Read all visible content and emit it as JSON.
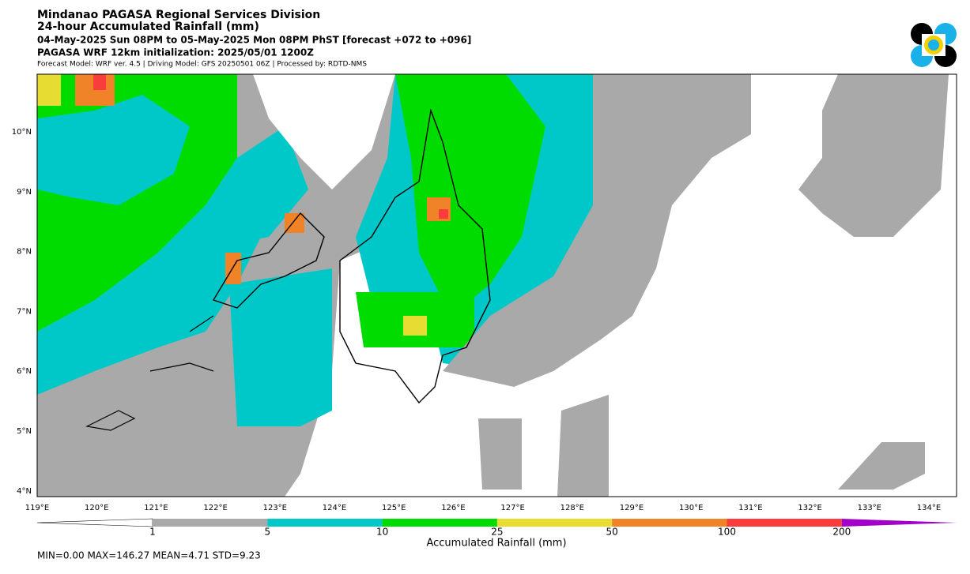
{
  "header": {
    "title": "Mindanao PAGASA Regional Services Division",
    "subtitle": "24-hour Accumulated Rainfall (mm)",
    "period": "04-May-2025 Sun 08PM to 05-May-2025 Mon 08PM PhST [forecast +072 to +096]",
    "model": "PAGASA WRF 12km initialization: 2025/05/01 1200Z",
    "note": "Forecast Model: WRF ver. 4.5 | Driving Model: GFS 20250501 06Z | Processed by: RDTD-NMS"
  },
  "map": {
    "lat_labels": [
      "10°N",
      "9°N",
      "8°N",
      "7°N",
      "6°N",
      "5°N",
      "4°N"
    ],
    "lon_labels": [
      "119°E",
      "120°E",
      "121°E",
      "122°E",
      "123°E",
      "124°E",
      "125°E",
      "126°E",
      "127°E",
      "128°E",
      "129°E",
      "130°E",
      "131°E",
      "132°E",
      "133°E",
      "134°E"
    ]
  },
  "colorbar": {
    "ticks": [
      "1",
      "5",
      "10",
      "25",
      "50",
      "100",
      "200"
    ],
    "colors": [
      "#a9a9a9",
      "#00c8c8",
      "#00dc00",
      "#e6dc32",
      "#f08228",
      "#fa3c3c",
      "#a000c8"
    ],
    "label": "Accumulated Rainfall (mm)"
  },
  "stats": "MIN=0.00   MAX=146.27   MEAN=4.71   STD=9.23"
}
